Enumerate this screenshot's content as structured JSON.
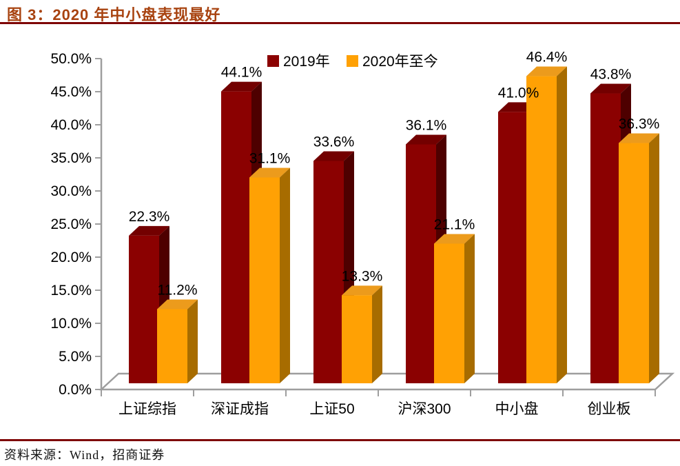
{
  "title": "图 3：2020 年中小盘表现最好",
  "footer": {
    "source_label": "资料来源：Wind，招商证券"
  },
  "colors": {
    "title_text": "#A84310",
    "rule": "#7E0303",
    "axis": "#9E9E9E",
    "chart_text": "#000000",
    "background": "#FFFFFF"
  },
  "chart_data": {
    "type": "bar",
    "subtype": "3d-column",
    "title": "图 3：2020 年中小盘表现最好",
    "categories": [
      "上证综指",
      "深证成指",
      "上证50",
      "沪深300",
      "中小盘",
      "创业板"
    ],
    "series": [
      {
        "name": "2019年",
        "values": [
          22.3,
          44.1,
          33.6,
          36.1,
          41.0,
          43.8
        ],
        "face_colors": {
          "front": "#8B0101",
          "top": "#730000",
          "side": "#4E0000"
        }
      },
      {
        "name": "2020年至今",
        "values": [
          11.2,
          31.1,
          13.3,
          21.1,
          46.4,
          36.3
        ],
        "face_colors": {
          "front": "#FFA104",
          "top": "#EC9B1C",
          "side": "#A76C00"
        }
      }
    ],
    "yticks": [
      "0.0%",
      "5.0%",
      "10.0%",
      "15.0%",
      "20.0%",
      "25.0%",
      "30.0%",
      "35.0%",
      "40.0%",
      "45.0%",
      "50.0%"
    ],
    "ylim": [
      0,
      50
    ],
    "ytick_step": 5,
    "data_label_format": "0.0%",
    "legend_position": "top-center",
    "grid": false
  }
}
